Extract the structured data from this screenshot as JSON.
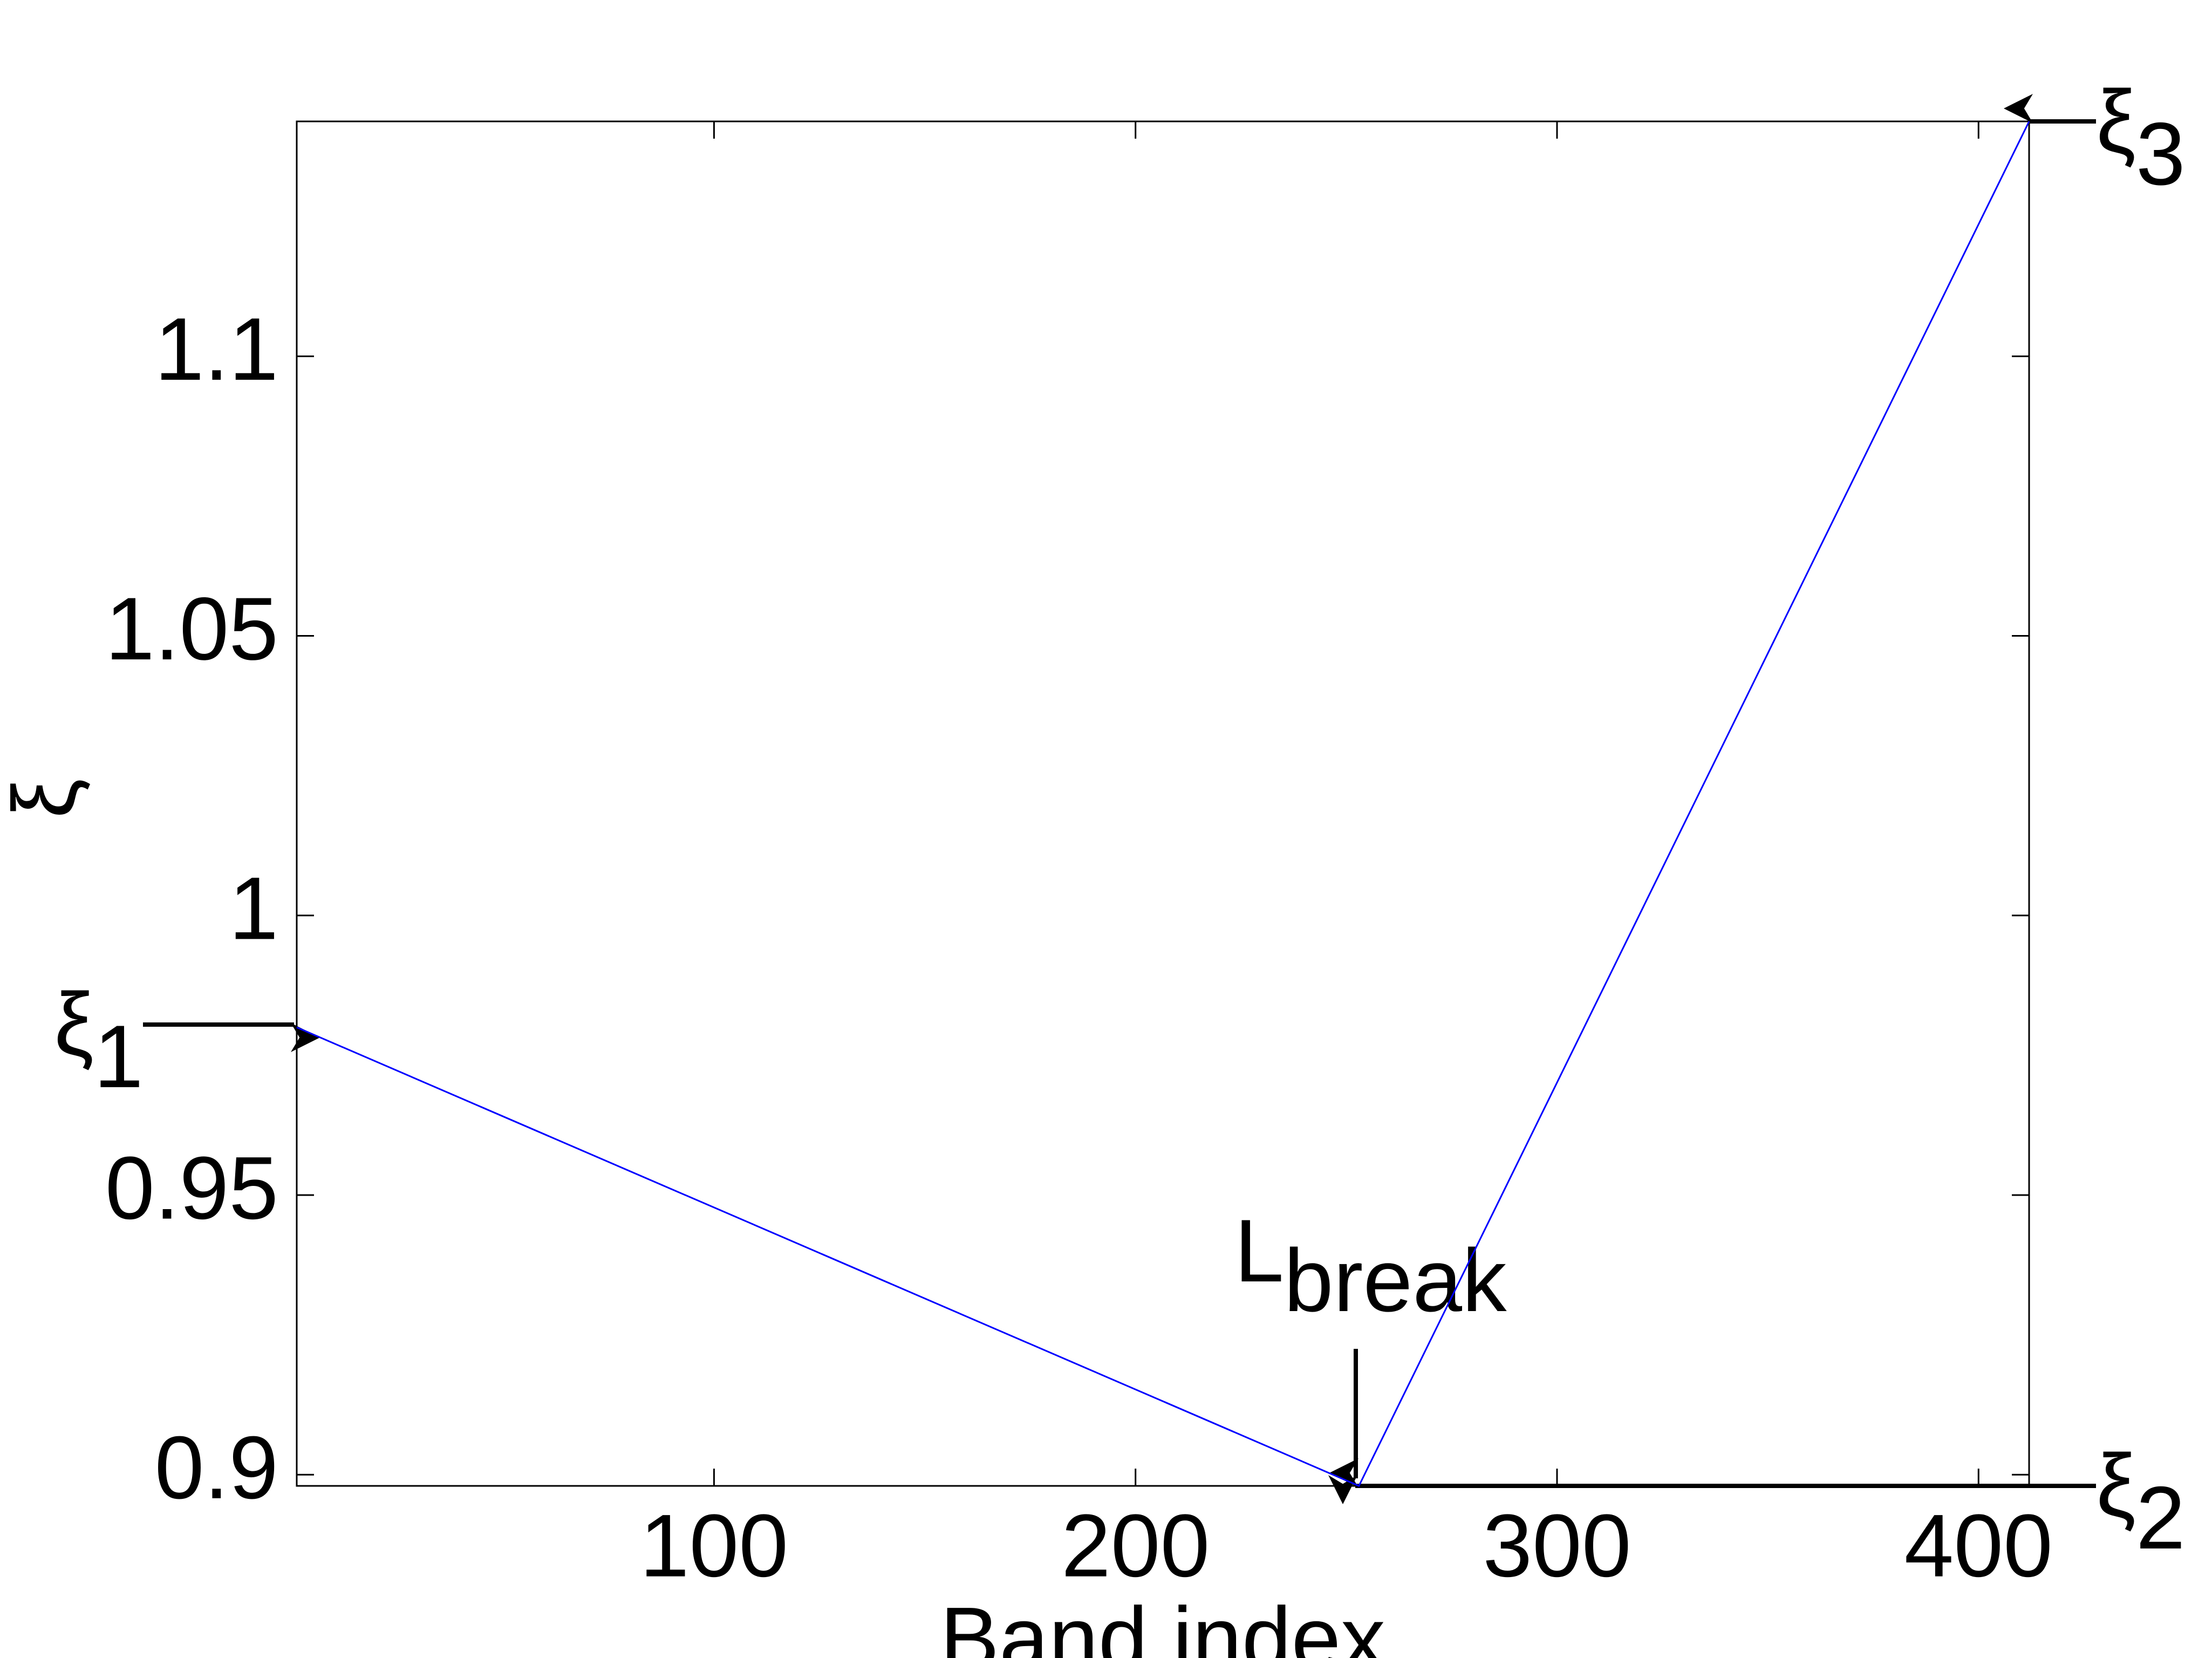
{
  "chart_data": {
    "type": "line",
    "x_label": "Band index",
    "y_label": "ξ",
    "x": [
      1,
      253,
      412
    ],
    "series": [
      {
        "color": "#0000ff",
        "values": [
          0.98,
          0.898,
          1.142
        ]
      }
    ],
    "xlim": [
      1,
      412
    ],
    "ylim": [
      0.898,
      1.142
    ],
    "xticks": [
      100,
      200,
      300,
      400
    ],
    "yticks": [
      0.9,
      0.95,
      1,
      1.05,
      1.1
    ],
    "grid": false,
    "annotations": [
      {
        "text": "ξ",
        "sub": "1"
      },
      {
        "text": "ξ",
        "sub": "2"
      },
      {
        "text": "ξ",
        "sub": "3"
      },
      {
        "text": "L",
        "sub": "break"
      }
    ]
  }
}
